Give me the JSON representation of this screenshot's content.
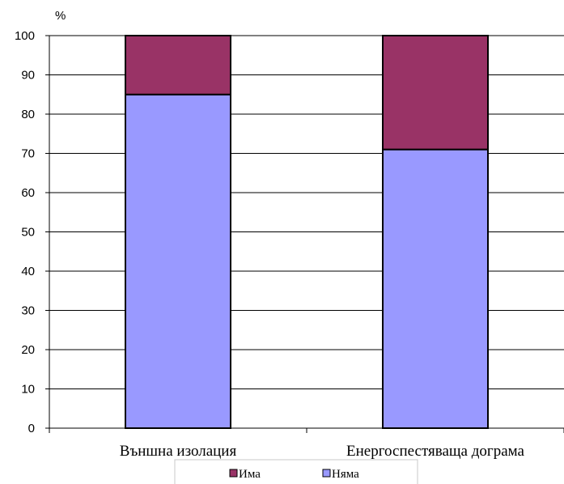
{
  "chart_data": {
    "type": "bar",
    "stacked": true,
    "categories": [
      "Външна изолация",
      "Енергоспестяваща дограма"
    ],
    "series": [
      {
        "name": "Няма",
        "values": [
          85,
          71
        ],
        "color": "#9999FF"
      },
      {
        "name": "Има",
        "values": [
          15,
          29
        ],
        "color": "#993366"
      }
    ],
    "ylim": [
      0,
      100
    ],
    "yticks": [
      0,
      10,
      20,
      30,
      40,
      50,
      60,
      70,
      80,
      90,
      100
    ],
    "ylabel": "%",
    "grid": true,
    "legend": "bottom",
    "legend_order": [
      "Има",
      "Няма"
    ]
  }
}
